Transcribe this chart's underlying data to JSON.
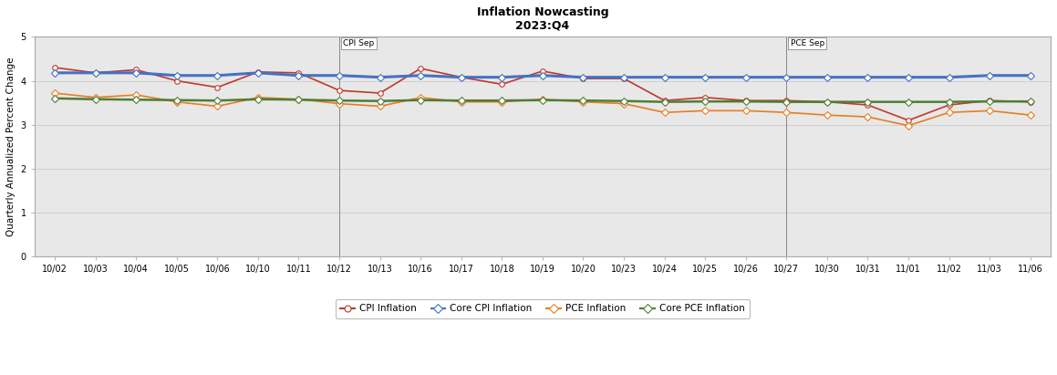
{
  "title": "Inflation Nowcasting",
  "subtitle": "2023:Q4",
  "ylabel": "Quarterly Annualized Percent Change",
  "ylim": [
    0,
    5
  ],
  "yticks": [
    0,
    1,
    2,
    3,
    4,
    5
  ],
  "x_labels": [
    "10/02",
    "10/03",
    "10/04",
    "10/05",
    "10/06",
    "10/10",
    "10/11",
    "10/12",
    "10/13",
    "10/16",
    "10/17",
    "10/18",
    "10/19",
    "10/20",
    "10/23",
    "10/24",
    "10/25",
    "10/26",
    "10/27",
    "10/30",
    "10/31",
    "11/01",
    "11/02",
    "11/03",
    "11/06"
  ],
  "vline_cpi_idx": 7,
  "vline_pce_idx": 18,
  "cpi_label": "CPI Sep",
  "pce_label": "PCE Sep",
  "series": {
    "CPI Inflation": {
      "color": "#c0392b",
      "marker": "o",
      "marker_facecolor": "white",
      "linewidth": 1.2,
      "markersize": 4,
      "values": [
        4.3,
        4.18,
        4.25,
        4.0,
        3.85,
        4.2,
        4.18,
        3.78,
        3.72,
        4.28,
        4.08,
        3.92,
        4.22,
        4.05,
        4.05,
        3.55,
        3.62,
        3.55,
        3.55,
        3.52,
        3.45,
        3.1,
        3.45,
        3.55,
        3.52
      ]
    },
    "Core CPI Inflation": {
      "color": "#4472c4",
      "marker": "D",
      "marker_facecolor": "white",
      "linewidth": 2.2,
      "markersize": 4,
      "values": [
        4.18,
        4.18,
        4.18,
        4.12,
        4.12,
        4.18,
        4.12,
        4.12,
        4.08,
        4.12,
        4.08,
        4.08,
        4.12,
        4.08,
        4.08,
        4.08,
        4.08,
        4.08,
        4.08,
        4.08,
        4.08,
        4.08,
        4.08,
        4.12,
        4.12
      ]
    },
    "PCE Inflation": {
      "color": "#e67e22",
      "marker": "D",
      "marker_facecolor": "white",
      "linewidth": 1.2,
      "markersize": 4,
      "values": [
        3.72,
        3.62,
        3.68,
        3.52,
        3.42,
        3.62,
        3.58,
        3.48,
        3.42,
        3.62,
        3.52,
        3.52,
        3.58,
        3.52,
        3.48,
        3.28,
        3.32,
        3.32,
        3.28,
        3.22,
        3.18,
        2.98,
        3.28,
        3.32,
        3.22
      ]
    },
    "Core PCE Inflation": {
      "color": "#4e7d34",
      "marker": "D",
      "marker_facecolor": "white",
      "linewidth": 1.8,
      "markersize": 4,
      "values": [
        3.6,
        3.58,
        3.57,
        3.56,
        3.55,
        3.58,
        3.57,
        3.55,
        3.54,
        3.56,
        3.55,
        3.55,
        3.56,
        3.55,
        3.54,
        3.52,
        3.53,
        3.53,
        3.52,
        3.52,
        3.52,
        3.52,
        3.52,
        3.53,
        3.53
      ]
    }
  },
  "bg_color_upper": "#e8e8e8",
  "bg_color_lower": "#e0e0e0",
  "fig_bg_color": "#ffffff",
  "grid_color": "#cccccc",
  "border_color": "#aaaaaa",
  "title_fontsize": 9,
  "subtitle_fontsize": 8,
  "ylabel_fontsize": 7.5,
  "tick_fontsize": 7,
  "legend_fontsize": 7.5
}
